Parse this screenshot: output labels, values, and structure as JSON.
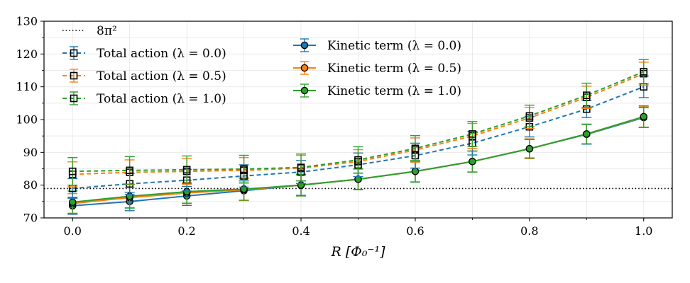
{
  "chart_data": {
    "type": "line",
    "title": "",
    "xlabel": "R [Φ₀⁻¹]",
    "ylabel": "",
    "xlim": [
      -0.05,
      1.05
    ],
    "ylim": [
      70,
      130
    ],
    "xticks": [
      0.0,
      0.2,
      0.4,
      0.6,
      0.8,
      1.0
    ],
    "xtick_labels": [
      "0.0",
      "0.2",
      "0.4",
      "0.6",
      "0.8",
      "1.0"
    ],
    "yticks": [
      70,
      80,
      90,
      100,
      110,
      120,
      130
    ],
    "ytick_labels": [
      "70",
      "80",
      "90",
      "100",
      "110",
      "120",
      "130"
    ],
    "grid": true,
    "x": [
      0.0,
      0.1,
      0.2,
      0.3,
      0.4,
      0.5,
      0.6,
      0.7,
      0.8,
      0.9,
      1.0
    ],
    "reference_line": {
      "name": "8π²",
      "value": 78.96,
      "color": "#000000",
      "style": "dotted"
    },
    "legend_placement": "top-left, two columns",
    "series": [
      {
        "name": "Total action (λ=0.0)",
        "kind": "total",
        "color": "#1f77b4",
        "values": [
          79.0,
          80.4,
          81.5,
          82.8,
          84.0,
          86.2,
          89.0,
          92.8,
          97.8,
          103.2,
          110.0
        ],
        "errors": [
          3.0,
          3.2,
          3.3,
          3.4,
          3.5,
          3.6,
          3.8,
          3.6,
          3.1,
          2.6,
          3.3
        ]
      },
      {
        "name": "Total action (λ=0.5)",
        "kind": "total",
        "color": "#ff7f0e",
        "values": [
          83.3,
          83.9,
          84.2,
          84.5,
          85.2,
          87.2,
          90.7,
          95.0,
          100.5,
          106.8,
          114.0
        ],
        "errors": [
          3.8,
          3.8,
          3.9,
          3.9,
          3.9,
          3.6,
          3.7,
          3.8,
          3.2,
          3.4,
          3.5
        ]
      },
      {
        "name": "Total action (λ=1.0)",
        "kind": "total",
        "color": "#2ca02c",
        "values": [
          84.2,
          84.5,
          84.7,
          84.9,
          85.4,
          87.7,
          91.2,
          95.6,
          101.1,
          107.4,
          114.6
        ],
        "errors": [
          4.2,
          4.2,
          4.2,
          4.2,
          4.1,
          4.0,
          3.9,
          3.8,
          3.3,
          3.7,
          3.7
        ]
      },
      {
        "name": "Kinetic term (λ=0.0)",
        "kind": "kinetic",
        "color": "#1f77b4",
        "values": [
          73.7,
          75.0,
          76.7,
          78.3,
          80.0,
          81.8,
          84.2,
          87.2,
          91.1,
          95.5,
          100.6
        ],
        "errors": [
          2.6,
          2.8,
          2.9,
          3.0,
          3.1,
          3.1,
          3.2,
          3.2,
          3.0,
          3.0,
          3.0
        ]
      },
      {
        "name": "Kinetic term (λ=0.5)",
        "kind": "kinetic",
        "color": "#ff7f0e",
        "values": [
          74.4,
          76.2,
          77.6,
          78.6,
          80.0,
          81.8,
          84.2,
          87.2,
          91.1,
          95.6,
          100.8
        ],
        "errors": [
          3.0,
          3.1,
          3.2,
          3.3,
          3.3,
          3.2,
          3.2,
          3.2,
          3.0,
          3.0,
          3.1
        ]
      },
      {
        "name": "Kinetic term (λ=1.0)",
        "kind": "kinetic",
        "color": "#2ca02c",
        "values": [
          74.8,
          76.6,
          78.0,
          78.8,
          80.0,
          81.8,
          84.2,
          87.2,
          91.1,
          95.6,
          100.9
        ],
        "errors": [
          3.4,
          3.6,
          3.5,
          3.4,
          3.3,
          3.2,
          3.3,
          3.2,
          2.8,
          3.0,
          3.3
        ]
      }
    ],
    "legend": {
      "col1": [
        {
          "ref": "8π²",
          "label": "8π²",
          "name": "legend-entry-8pi2"
        },
        {
          "ref": 0,
          "label": "Total action  (λ = 0.0)",
          "name": "legend-entry-total-0-0"
        },
        {
          "ref": 1,
          "label": "Total action  (λ = 0.5)",
          "name": "legend-entry-total-0-5"
        },
        {
          "ref": 2,
          "label": "Total action  (λ = 1.0)",
          "name": "legend-entry-total-1-0"
        }
      ],
      "col2": [
        {
          "ref": 3,
          "label": "Kinetic term  (λ = 0.0)",
          "name": "legend-entry-kinetic-0-0"
        },
        {
          "ref": 4,
          "label": "Kinetic term  (λ = 0.5)",
          "name": "legend-entry-kinetic-0-5"
        },
        {
          "ref": 5,
          "label": "Kinetic term  (λ = 1.0)",
          "name": "legend-entry-kinetic-1-0"
        }
      ]
    }
  }
}
